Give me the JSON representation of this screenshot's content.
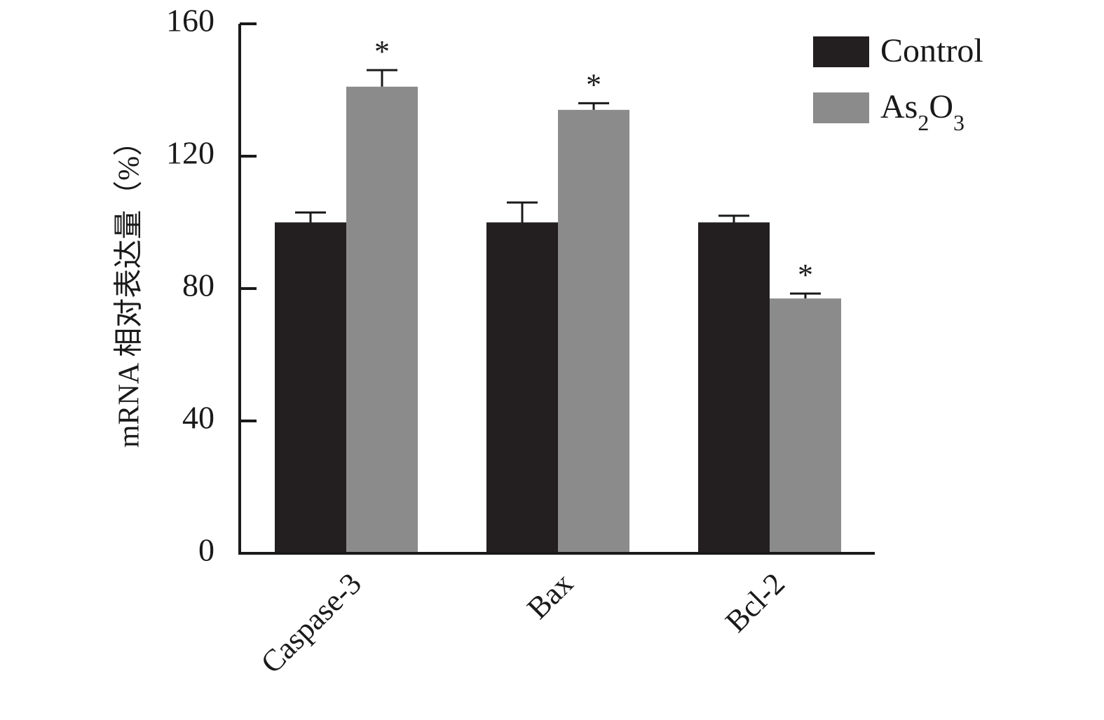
{
  "chart_data": {
    "type": "bar",
    "categories": [
      "Caspase-3",
      "Bax",
      "Bcl-2"
    ],
    "series": [
      {
        "name": "Control",
        "legend_label": "Control",
        "color": "#231f20",
        "values": [
          100,
          100,
          100
        ],
        "errors": [
          3,
          6,
          2
        ]
      },
      {
        "name": "As2O3",
        "legend_label": "As2O3",
        "legend_parts": [
          "As",
          "2",
          "O",
          "3"
        ],
        "color": "#8c8b8b",
        "values": [
          141,
          134,
          77
        ],
        "errors": [
          5,
          2,
          1.5
        ],
        "significance": [
          "*",
          "*",
          "*"
        ]
      }
    ],
    "ylabel": "mRNA 相对表达量（%）",
    "xlabel": "",
    "ylim": [
      0,
      160
    ],
    "yticks": [
      0,
      40,
      80,
      120,
      160
    ],
    "legend_position": "top-right",
    "grid": false
  }
}
